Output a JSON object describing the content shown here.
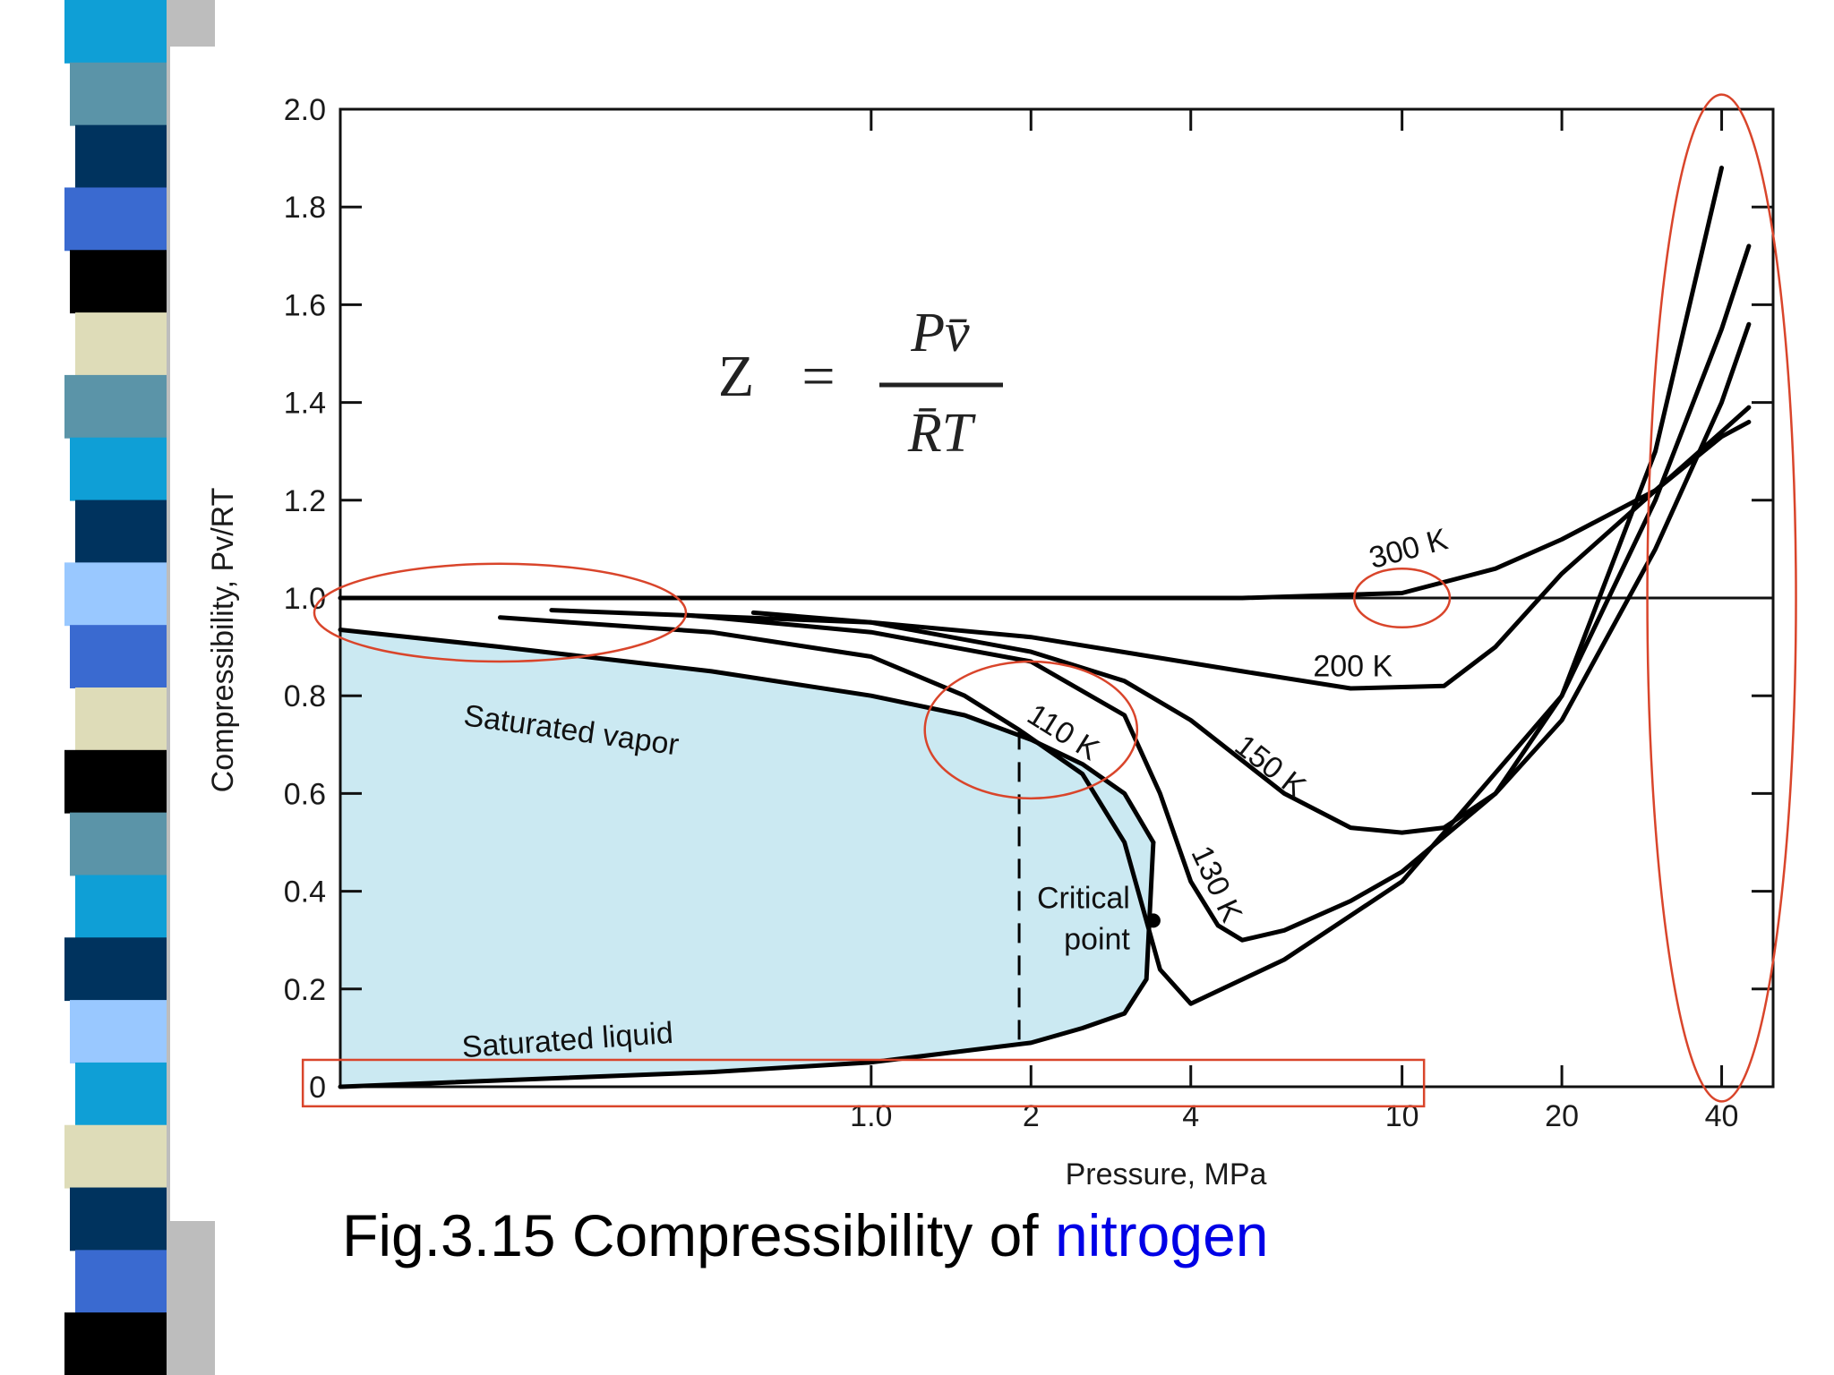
{
  "slide": {
    "caption_prefix": "Fig.3.15 Compressibility of ",
    "caption_highlight": "nitrogen",
    "caption_highlight_color": "#0000e6",
    "stripe_colors": [
      "#0f9fd6",
      "#5b94a8",
      "#00335e",
      "#3a6ad0",
      "#000000",
      "#dedcb8",
      "#5b94a8",
      "#0f9fd6",
      "#00335e",
      "#99c8ff",
      "#3a6ad0",
      "#dedcb8",
      "#000000",
      "#5b94a8",
      "#0f9fd6",
      "#00335e",
      "#99c8ff",
      "#0f9fd6",
      "#dedcb8",
      "#00335e",
      "#3a6ad0",
      "#000000"
    ]
  },
  "chart_data": {
    "type": "line",
    "xscale": "log",
    "xlabel": "Pressure, MPa",
    "ylabel": "Compressibility, Pv/RT",
    "xlim": [
      0.1,
      50
    ],
    "ylim": [
      0,
      2.0
    ],
    "x_ticks": [
      {
        "value": 1.0,
        "label": "1.0"
      },
      {
        "value": 2,
        "label": "2"
      },
      {
        "value": 4,
        "label": "4"
      },
      {
        "value": 10,
        "label": "10"
      },
      {
        "value": 20,
        "label": "20"
      },
      {
        "value": 40,
        "label": "40"
      }
    ],
    "y_ticks": [
      {
        "value": 0,
        "label": "0"
      },
      {
        "value": 0.2,
        "label": "0.2"
      },
      {
        "value": 0.4,
        "label": "0.4"
      },
      {
        "value": 0.6,
        "label": "0.6"
      },
      {
        "value": 0.8,
        "label": "0.8"
      },
      {
        "value": 1.0,
        "label": "1.0"
      },
      {
        "value": 1.2,
        "label": "1.2"
      },
      {
        "value": 1.4,
        "label": "1.4"
      },
      {
        "value": 1.6,
        "label": "1.6"
      },
      {
        "value": 1.8,
        "label": "1.8"
      },
      {
        "value": 2.0,
        "label": "2.0"
      }
    ],
    "formula": {
      "lhs": "Z",
      "numerator": "Pv̄",
      "denominator": "R̄T"
    },
    "reference_line": 1.0,
    "two_phase_fill": "#cbe9f2",
    "highlight_color": "#d9452b",
    "series": [
      {
        "name": "300 K",
        "label_at": [
          8.8,
          1.06
        ],
        "label_rot": -15,
        "x": [
          0.1,
          1,
          5,
          10,
          15,
          20,
          30,
          40,
          45
        ],
        "y": [
          1.0,
          1.0,
          1.0,
          1.01,
          1.06,
          1.12,
          1.22,
          1.33,
          1.36
        ]
      },
      {
        "name": "200 K",
        "label_at": [
          6.8,
          0.84
        ],
        "label_rot": 0,
        "x": [
          0.25,
          1,
          2,
          5,
          8,
          12,
          15,
          20,
          30,
          40,
          45
        ],
        "y": [
          0.975,
          0.95,
          0.92,
          0.85,
          0.815,
          0.82,
          0.9,
          1.05,
          1.22,
          1.34,
          1.39
        ]
      },
      {
        "name": "150 K",
        "label_at": [
          4.8,
          0.69
        ],
        "label_rot": 38,
        "x": [
          0.6,
          1,
          2,
          3,
          4,
          6,
          8,
          10,
          12,
          15,
          20,
          30,
          40,
          45
        ],
        "y": [
          0.97,
          0.95,
          0.89,
          0.83,
          0.75,
          0.6,
          0.53,
          0.52,
          0.53,
          0.6,
          0.75,
          1.1,
          1.4,
          1.56
        ]
      },
      {
        "name": "130 K",
        "label_at": [
          4.0,
          0.48
        ],
        "label_rot": 65,
        "x": [
          0.45,
          1,
          2,
          3,
          3.5,
          4,
          4.5,
          5,
          6,
          8,
          10,
          15,
          20,
          30,
          40,
          45
        ],
        "y": [
          0.965,
          0.93,
          0.87,
          0.76,
          0.6,
          0.42,
          0.33,
          0.3,
          0.32,
          0.38,
          0.44,
          0.6,
          0.8,
          1.2,
          1.55,
          1.72
        ]
      },
      {
        "name": "110 K",
        "label_at": [
          1.95,
          0.75
        ],
        "label_rot": 32,
        "x": [
          0.2,
          0.5,
          1,
          1.5,
          1.9,
          2.5,
          3,
          3.5,
          4,
          6,
          10,
          20,
          30,
          40
        ],
        "y": [
          0.96,
          0.93,
          0.88,
          0.8,
          0.73,
          0.64,
          0.5,
          0.24,
          0.17,
          0.26,
          0.42,
          0.8,
          1.3,
          1.88
        ]
      },
      {
        "name": "Saturated vapor",
        "label_at": [
          0.17,
          0.74
        ],
        "label_rot": 8,
        "x": [
          0.1,
          0.2,
          0.5,
          1,
          1.5,
          2,
          2.5,
          3,
          3.4
        ],
        "y": [
          0.935,
          0.9,
          0.85,
          0.8,
          0.76,
          0.71,
          0.66,
          0.6,
          0.5
        ]
      },
      {
        "name": "Saturated liquid",
        "label_at": [
          0.17,
          0.06
        ],
        "label_rot": -4,
        "x": [
          0.1,
          0.5,
          1,
          2,
          2.5,
          3,
          3.3,
          3.4
        ],
        "y": [
          0.0,
          0.03,
          0.05,
          0.09,
          0.12,
          0.15,
          0.22,
          0.5
        ]
      }
    ],
    "critical_point": {
      "x": 3.4,
      "y": 0.34,
      "label_line1": "Critical",
      "label_line2": "point"
    },
    "dashed_line_x": 1.9,
    "highlights": [
      {
        "shape": "ellipse",
        "cx": 0.2,
        "cy": 0.97,
        "rx_decades": 0.35,
        "ry": 0.1
      },
      {
        "shape": "ellipse",
        "cx": 10,
        "cy": 1.0,
        "rx_decades": 0.09,
        "ry": 0.06
      },
      {
        "shape": "ellipse",
        "cx": 2.0,
        "cy": 0.73,
        "rx_decades": 0.2,
        "ry": 0.14
      },
      {
        "shape": "ellipse",
        "cx": 40,
        "cy": 1.0,
        "rx_decades": 0.14,
        "ry": 1.03
      },
      {
        "shape": "rect",
        "x0": 0.085,
        "x1": 11,
        "y0": -0.04,
        "y1": 0.055
      }
    ]
  }
}
